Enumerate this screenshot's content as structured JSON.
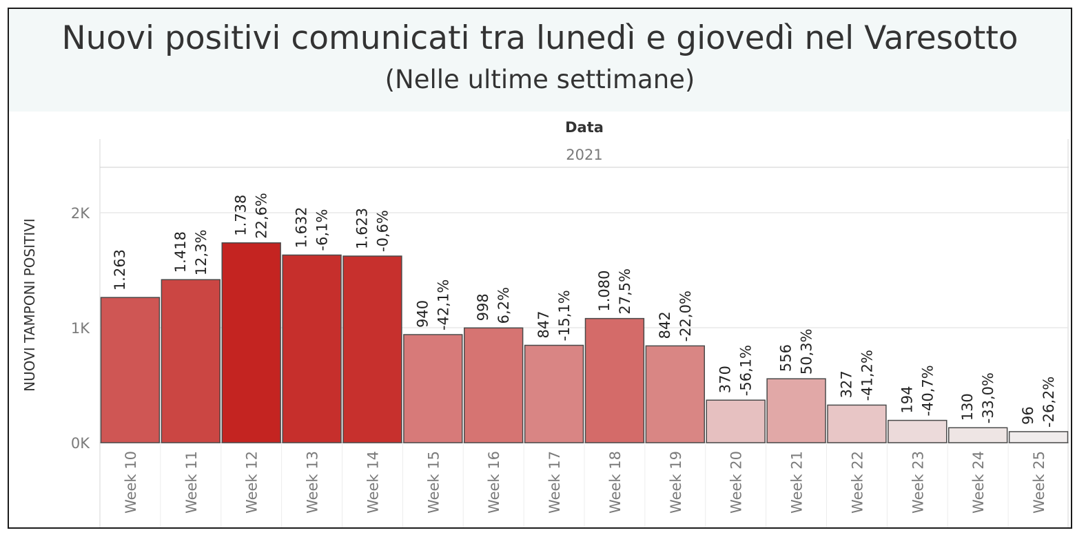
{
  "header": {
    "title": "Nuovi positivi comunicati tra lunedì e giovedì nel Varesotto",
    "subtitle": "(Nelle ultime settimane)"
  },
  "colors": {
    "max": "#c42421",
    "min": "#f0ecec",
    "bar_border": "#4a4a4a",
    "grid": "#e8e8e8",
    "text": "#333333",
    "tick": "#7a7a7a"
  },
  "chart_data": {
    "type": "bar",
    "column_header": "Data",
    "column_group": "2021",
    "ylabel": "NUOVI TAMPONI POSITIVI",
    "ylim": [
      0,
      2500
    ],
    "yticks": [
      {
        "value": 0,
        "label": "0K"
      },
      {
        "value": 1000,
        "label": "1K"
      },
      {
        "value": 2000,
        "label": "2K"
      }
    ],
    "grid": true,
    "categories": [
      "Week 10",
      "Week 11",
      "Week 12",
      "Week 13",
      "Week 14",
      "Week 15",
      "Week 16",
      "Week 17",
      "Week 18",
      "Week 19",
      "Week 20",
      "Week 21",
      "Week 22",
      "Week 23",
      "Week 24",
      "Week 25"
    ],
    "values": [
      1263,
      1418,
      1738,
      1632,
      1623,
      940,
      998,
      847,
      1080,
      842,
      370,
      556,
      327,
      194,
      130,
      96
    ],
    "value_labels": [
      "1.263",
      "1.418",
      "1.738",
      "1.632",
      "1.623",
      "940",
      "998",
      "847",
      "1.080",
      "842",
      "370",
      "556",
      "327",
      "194",
      "130",
      "96"
    ],
    "change_labels": [
      "",
      "12,3%",
      "22,6%",
      "-6,1%",
      "-0,6%",
      "-42,1%",
      "6,2%",
      "-15,1%",
      "27,5%",
      "-22,0%",
      "-56,1%",
      "50,3%",
      "-41,2%",
      "-40,7%",
      "-33,0%",
      "-26,2%"
    ]
  }
}
